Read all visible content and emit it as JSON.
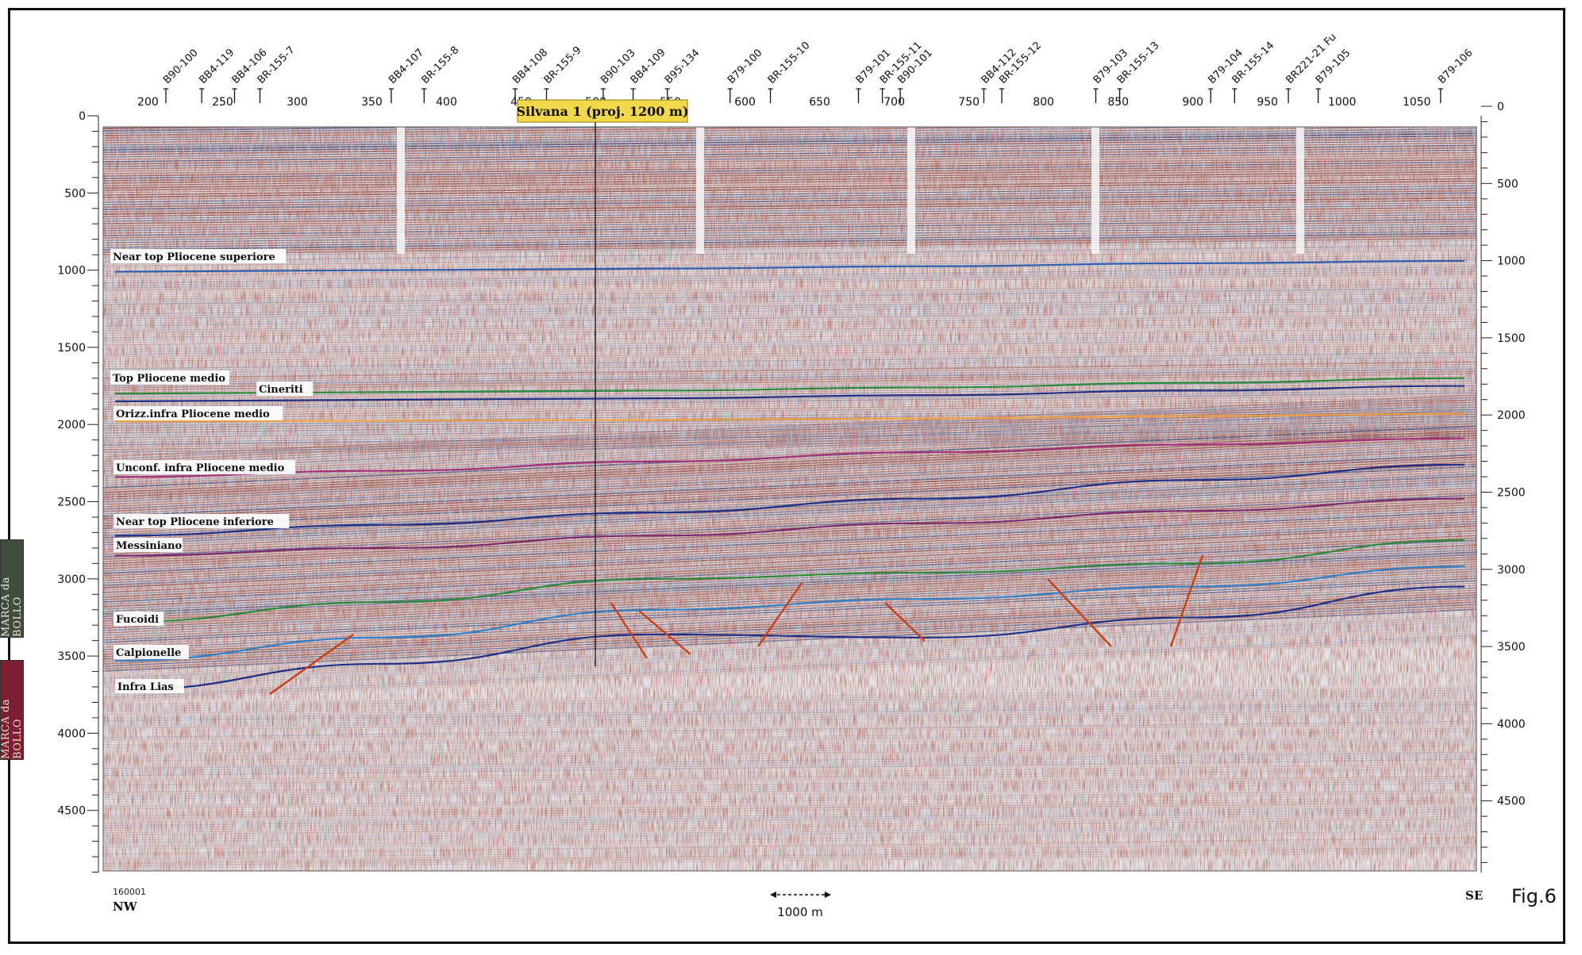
{
  "figure": {
    "label": "Fig.6",
    "nw_label": "NW",
    "se_label": "SE",
    "trace_number": "160001",
    "scale_bar_label": "1000 m",
    "well_label": "Silvana 1 (proj. 1200 m)",
    "stamps": [
      "MARCA da BOLLO",
      "MARCA da BOLLO"
    ]
  },
  "axes": {
    "top_cdp": {
      "min": 170,
      "max": 1090,
      "ticks": [
        200,
        250,
        300,
        350,
        400,
        450,
        500,
        550,
        600,
        650,
        700,
        750,
        800,
        850,
        900,
        950,
        1000,
        1050
      ]
    },
    "depth": {
      "min": 0,
      "max": 4950,
      "ticks": [
        0,
        500,
        1000,
        1500,
        2000,
        2500,
        3000,
        3500,
        4000,
        4500
      ]
    }
  },
  "well_ties": [
    {
      "name": "B90-100",
      "cdp": 212
    },
    {
      "name": "BB4-119",
      "cdp": 236
    },
    {
      "name": "BB4-106",
      "cdp": 258
    },
    {
      "name": "BR-155-7",
      "cdp": 275
    },
    {
      "name": "BB4-107",
      "cdp": 363
    },
    {
      "name": "BR-155-8",
      "cdp": 385
    },
    {
      "name": "BB4-108",
      "cdp": 446
    },
    {
      "name": "BR-155-9",
      "cdp": 467
    },
    {
      "name": "B90-103",
      "cdp": 505
    },
    {
      "name": "BB4-109",
      "cdp": 525
    },
    {
      "name": "B95-134",
      "cdp": 548
    },
    {
      "name": "B79-100",
      "cdp": 590
    },
    {
      "name": "BR-155-10",
      "cdp": 617
    },
    {
      "name": "B79-101",
      "cdp": 676
    },
    {
      "name": "BR-155-11",
      "cdp": 692
    },
    {
      "name": "B90-101",
      "cdp": 704
    },
    {
      "name": "BB4-112",
      "cdp": 760
    },
    {
      "name": "BR-155-12",
      "cdp": 772
    },
    {
      "name": "B79-103",
      "cdp": 835
    },
    {
      "name": "BR-155-13",
      "cdp": 851
    },
    {
      "name": "B79-104",
      "cdp": 912
    },
    {
      "name": "BR-155-14",
      "cdp": 928
    },
    {
      "name": "BR221-21 Fu",
      "cdp": 964
    },
    {
      "name": "B79-105",
      "cdp": 984
    },
    {
      "name": "B79-106",
      "cdp": 1066
    }
  ],
  "horizons": [
    {
      "name": "Near top Pliocene superiore",
      "color": "#2f5fb0",
      "depths": [
        1010,
        1000,
        990,
        975,
        955,
        940
      ]
    },
    {
      "name": "Top Pliocene medio",
      "color": "#2a8a3a",
      "depths": [
        1800,
        1790,
        1780,
        1760,
        1730,
        1700
      ]
    },
    {
      "name": "Cineriti",
      "color": "#1f2f86",
      "depths": [
        1850,
        1840,
        1830,
        1810,
        1780,
        1750
      ]
    },
    {
      "name": "Orizz.infra Pliocene medio",
      "color": "#f0a040",
      "depths": [
        1980,
        1975,
        1970,
        1960,
        1945,
        1930
      ]
    },
    {
      "name": "Unconf. infra Pliocene medio",
      "color": "#a0307a",
      "depths": [
        2340,
        2300,
        2240,
        2180,
        2130,
        2090
      ]
    },
    {
      "name": "Near top Pliocene inferiore",
      "color": "#1f2f86",
      "depths": [
        2720,
        2650,
        2570,
        2480,
        2360,
        2260
      ]
    },
    {
      "name": "Messiniano",
      "color": "#7a2a70",
      "depths": [
        2850,
        2800,
        2720,
        2640,
        2560,
        2480
      ]
    },
    {
      "name": "Fucoidi",
      "color": "#2a8a3a",
      "depths": [
        3280,
        3150,
        3000,
        2960,
        2900,
        2750
      ]
    },
    {
      "name": "Calpionelle",
      "color": "#2f80c8",
      "depths": [
        3530,
        3380,
        3200,
        3130,
        3050,
        2920
      ]
    },
    {
      "name": "Infra Lias",
      "color": "#1f2f86",
      "depths": [
        3720,
        3550,
        3360,
        3380,
        3250,
        3050
      ]
    }
  ],
  "colors": {
    "seismic_positive": "#7a2a20",
    "seismic_negative": "#b8c8e0",
    "seismic_background": "#e8e6e4",
    "fault": "#c8401a",
    "well_label_bg": "#f2d84a"
  }
}
